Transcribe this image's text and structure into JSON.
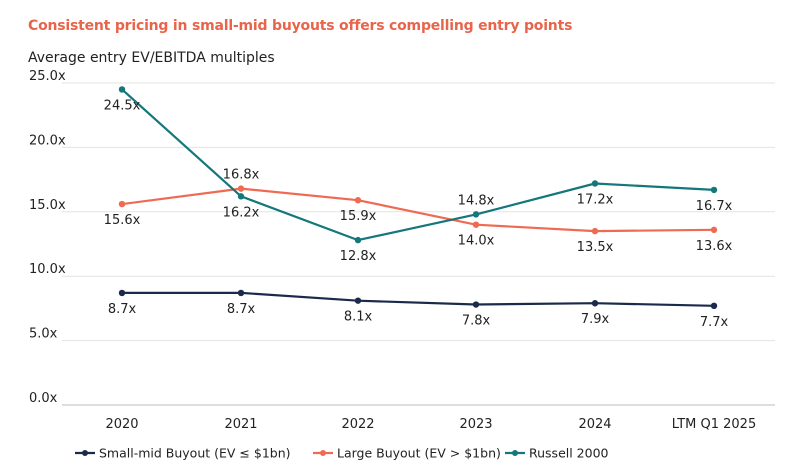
{
  "headline": "Consistent pricing in small-mid buyouts offers compelling entry points",
  "chart_data": {
    "type": "line",
    "title": "Average entry EV/EBITDA multiples",
    "categories": [
      "2020",
      "2021",
      "2022",
      "2023",
      "2024",
      "LTM Q1 2025"
    ],
    "y_ticks": [
      "0.0x",
      "5.0x",
      "10.0x",
      "15.0x",
      "20.0x",
      "25.0x"
    ],
    "ylim": [
      0,
      25
    ],
    "grid": true,
    "legend_position": "bottom",
    "series": [
      {
        "name": "Small-mid Buyout (EV ≤ $1bn)",
        "color": "#1b2a4a",
        "values": [
          8.7,
          8.7,
          8.1,
          7.8,
          7.9,
          7.7
        ],
        "labels": [
          "8.7x",
          "8.7x",
          "8.1x",
          "7.8x",
          "7.9x",
          "7.7x"
        ],
        "label_side": [
          "below",
          "below",
          "below",
          "below",
          "below",
          "below"
        ]
      },
      {
        "name": "Large Buyout (EV > $1bn)",
        "color": "#ef6a52",
        "values": [
          15.6,
          16.8,
          15.9,
          14.0,
          13.5,
          13.6
        ],
        "labels": [
          "15.6x",
          "16.8x",
          "15.9x",
          "14.0x",
          "13.5x",
          "13.6x"
        ],
        "label_side": [
          "below",
          "above",
          "below",
          "below",
          "below",
          "below"
        ]
      },
      {
        "name": "Russell 2000",
        "color": "#14777b",
        "values": [
          24.5,
          16.2,
          12.8,
          14.8,
          17.2,
          16.7
        ],
        "labels": [
          "24.5x",
          "16.2x",
          "12.8x",
          "14.8x",
          "17.2x",
          "16.7x"
        ],
        "label_side": [
          "below",
          "below",
          "below",
          "above",
          "below",
          "below"
        ]
      }
    ]
  }
}
